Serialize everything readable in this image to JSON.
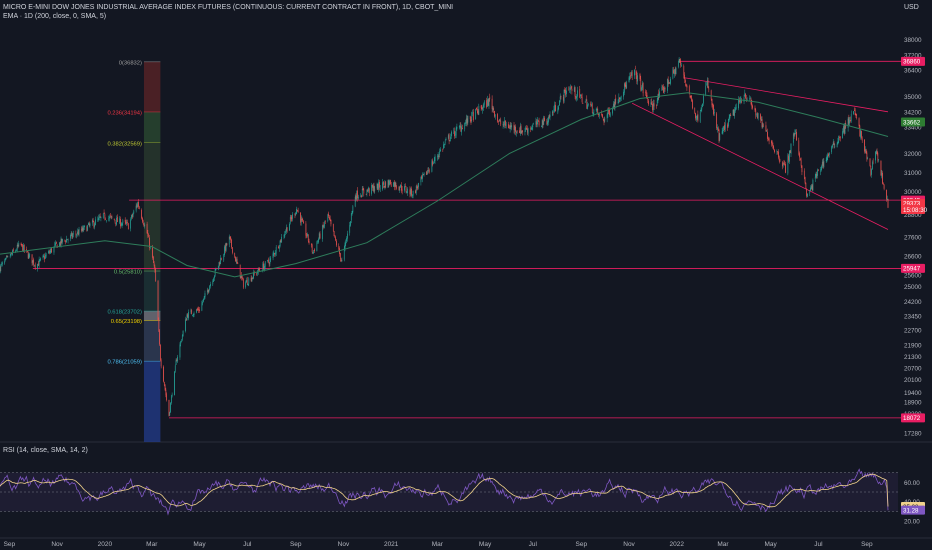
{
  "header": {
    "symbol_line": "MICRO E-MINI DOW JONES INDUSTRIAL AVERAGE INDEX FUTURES (CONTINUOUS: CURRENT CONTRACT IN FRONT), 1D, CBOT_MINI",
    "ema_line": "EMA · 1D (200, close, 0, SMA, 5)",
    "rsi_line": "RSI (14, close, SMA, 14, 2)",
    "currency": "USD"
  },
  "colors": {
    "background": "#131722",
    "up_candle": "#26a69a",
    "down_candle": "#ef5350",
    "ema": "#2e7d5b",
    "horizontal_line": "#e91e63",
    "rsi": "#7e57c2",
    "rsi_ma": "#f0d28b"
  },
  "chart_data": [
    {
      "type": "candlestick",
      "title": "MICRO E-MINI DOW JONES INDUSTRIAL AVERAGE INDEX FUTURES (CONTINUOUS: CURRENT CONTRACT IN FRONT), 1D, CBOT_MINI",
      "x_tick_labels": [
        "Sep",
        "Nov",
        "2020",
        "Mar",
        "May",
        "Jul",
        "Sep",
        "Nov",
        "2021",
        "Mar",
        "May",
        "Jul",
        "Sep",
        "Nov",
        "2022",
        "Mar",
        "May",
        "Jul",
        "Sep"
      ],
      "y_tick_labels": [
        38000,
        37200,
        36400,
        35000,
        34200,
        33400,
        32000,
        31000,
        30000,
        28800,
        27600,
        26600,
        25600,
        25000,
        24200,
        23450,
        22700,
        21900,
        21300,
        20700,
        20100,
        19400,
        18900,
        18300,
        17280
      ],
      "ylim": [
        16800,
        38300
      ],
      "price_path": [
        [
          "2019-08-20",
          26000
        ],
        [
          "2019-09-15",
          27200
        ],
        [
          "2019-10-05",
          26100
        ],
        [
          "2019-11-01",
          27200
        ],
        [
          "2019-12-01",
          27900
        ],
        [
          "2020-01-01",
          28700
        ],
        [
          "2020-01-31",
          28200
        ],
        [
          "2020-02-12",
          29400
        ],
        [
          "2020-02-24",
          27800
        ],
        [
          "2020-03-05",
          25800
        ],
        [
          "2020-03-12",
          21200
        ],
        [
          "2020-03-23",
          18200
        ],
        [
          "2020-04-01",
          21000
        ],
        [
          "2020-04-15",
          23500
        ],
        [
          "2020-05-01",
          23800
        ],
        [
          "2020-06-08",
          27500
        ],
        [
          "2020-06-26",
          25100
        ],
        [
          "2020-07-31",
          26400
        ],
        [
          "2020-09-02",
          29100
        ],
        [
          "2020-09-23",
          26800
        ],
        [
          "2020-10-12",
          28700
        ],
        [
          "2020-10-30",
          26300
        ],
        [
          "2020-11-16",
          29800
        ],
        [
          "2020-12-31",
          30500
        ],
        [
          "2021-01-29",
          29900
        ],
        [
          "2021-03-15",
          32800
        ],
        [
          "2021-05-07",
          34800
        ],
        [
          "2021-05-19",
          33600
        ],
        [
          "2021-06-18",
          33200
        ],
        [
          "2021-07-20",
          33800
        ],
        [
          "2021-08-16",
          35500
        ],
        [
          "2021-09-30",
          33800
        ],
        [
          "2021-11-08",
          36300
        ],
        [
          "2021-11-30",
          34400
        ],
        [
          "2021-12-29",
          36300
        ],
        [
          "2022-01-04",
          36900
        ],
        [
          "2022-01-27",
          33800
        ],
        [
          "2022-02-09",
          35700
        ],
        [
          "2022-02-24",
          32800
        ],
        [
          "2022-03-29",
          35200
        ],
        [
          "2022-05-20",
          31200
        ],
        [
          "2022-06-01",
          33200
        ],
        [
          "2022-06-17",
          29700
        ],
        [
          "2022-07-01",
          31100
        ],
        [
          "2022-08-16",
          34200
        ],
        [
          "2022-09-06",
          31000
        ],
        [
          "2022-09-12",
          32300
        ],
        [
          "2022-09-28",
          29300
        ]
      ],
      "last_close": 29373,
      "series": [
        {
          "name": "EMA · 1D (200, close, 0, SMA, 5)",
          "points": [
            [
              "2019-08-20",
              26700
            ],
            [
              "2020-01-01",
              27400
            ],
            [
              "2020-03-01",
              27100
            ],
            [
              "2020-04-15",
              26100
            ],
            [
              "2020-06-15",
              25500
            ],
            [
              "2020-09-01",
              26200
            ],
            [
              "2020-12-01",
              27300
            ],
            [
              "2021-03-01",
              29500
            ],
            [
              "2021-06-01",
              32000
            ],
            [
              "2021-09-01",
              33800
            ],
            [
              "2021-11-15",
              34900
            ],
            [
              "2022-01-15",
              35200
            ],
            [
              "2022-04-15",
              34700
            ],
            [
              "2022-07-01",
              33900
            ],
            [
              "2022-09-28",
              32900
            ]
          ]
        }
      ],
      "fibonacci": {
        "levels": [
          {
            "label": "0(36832)",
            "value": 36832
          },
          {
            "label": "0.236(34194)",
            "value": 34194
          },
          {
            "label": "0.382(32569)",
            "value": 32569
          },
          {
            "label": "0.5(25810)",
            "value": 25810
          },
          {
            "label": "0.618(23702)",
            "value": 23702
          },
          {
            "label": "0.65(23198)",
            "value": 23198
          },
          {
            "label": "0.786(21059)",
            "value": 21059
          }
        ]
      },
      "horizontal_lines": [
        36860,
        29545,
        25947,
        18072
      ],
      "price_labels": [
        {
          "text": "36860",
          "value": 36860,
          "color": "#e91e63"
        },
        {
          "text": "33662",
          "value": 33662,
          "color": "#2e7d32"
        },
        {
          "text": "29545",
          "value": 29545,
          "color": "#e91e63"
        },
        {
          "text": "29373",
          "value": 29373,
          "color": "#f23645"
        },
        {
          "text": "15:08:30",
          "value": 29050,
          "color": "#f23645"
        },
        {
          "text": "25947",
          "value": 25947,
          "color": "#e91e63"
        },
        {
          "text": "18072",
          "value": 18072,
          "color": "#e91e63"
        }
      ],
      "trend_lines": [
        {
          "from": [
            "2021-11-05",
            34650
          ],
          "to": [
            "2022-09-28",
            28000
          ]
        },
        {
          "from": [
            "2022-01-10",
            36000
          ],
          "to": [
            "2022-09-28",
            34200
          ]
        }
      ]
    },
    {
      "type": "line",
      "title": "RSI (14, close, SMA, 14, 2)",
      "y_tick_labels": [
        60.0,
        40.0,
        20.0
      ],
      "ylim": [
        15,
        85
      ],
      "bands": {
        "upper": 70,
        "lower": 30
      },
      "series": [
        {
          "name": "RSI",
          "last_value": 31.28
        },
        {
          "name": "RSI-based MA",
          "last_value": 35.08
        }
      ],
      "price_labels": [
        {
          "text": "35.08",
          "value": 35.08,
          "color": "#f0d28b"
        },
        {
          "text": "31.28",
          "value": 31.28,
          "color": "#7e57c2"
        }
      ]
    }
  ]
}
